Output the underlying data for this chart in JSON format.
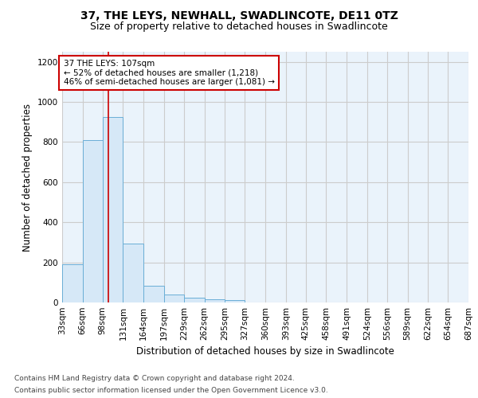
{
  "title": "37, THE LEYS, NEWHALL, SWADLINCOTE, DE11 0TZ",
  "subtitle": "Size of property relative to detached houses in Swadlincote",
  "xlabel": "Distribution of detached houses by size in Swadlincote",
  "ylabel": "Number of detached properties",
  "bin_edges": [
    33,
    66,
    98,
    131,
    164,
    197,
    229,
    262,
    295,
    327,
    360,
    393,
    425,
    458,
    491,
    524,
    556,
    589,
    622,
    654,
    687
  ],
  "bin_heights": [
    190,
    810,
    925,
    295,
    85,
    40,
    25,
    15,
    10,
    0,
    0,
    0,
    0,
    0,
    0,
    0,
    0,
    0,
    0,
    0
  ],
  "bar_facecolor": "#d6e8f7",
  "bar_edgecolor": "#6aaed6",
  "vline_x": 107,
  "vline_color": "#cc0000",
  "annotation_text": "37 THE LEYS: 107sqm\n← 52% of detached houses are smaller (1,218)\n46% of semi-detached houses are larger (1,081) →",
  "annotation_box_edgecolor": "#cc0000",
  "annotation_box_facecolor": "#ffffff",
  "ylim": [
    0,
    1250
  ],
  "yticks": [
    0,
    200,
    400,
    600,
    800,
    1000,
    1200
  ],
  "footer_line1": "Contains HM Land Registry data © Crown copyright and database right 2024.",
  "footer_line2": "Contains public sector information licensed under the Open Government Licence v3.0.",
  "bg_color": "#ffffff",
  "grid_color": "#cccccc",
  "title_fontsize": 10,
  "subtitle_fontsize": 9,
  "axis_label_fontsize": 8.5,
  "tick_fontsize": 7.5,
  "annotation_fontsize": 7.5,
  "footer_fontsize": 6.5
}
